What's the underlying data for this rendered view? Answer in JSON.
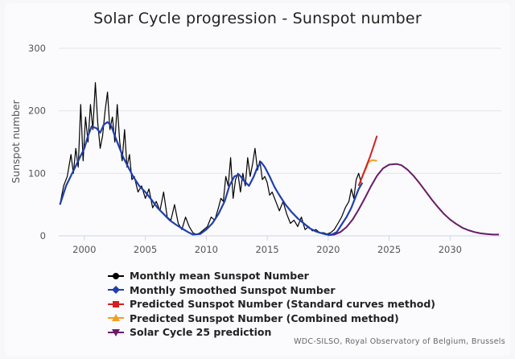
{
  "chart_data": {
    "type": "line",
    "title": "Solar Cycle progression - Sunspot number",
    "xlabel": "",
    "ylabel": "Sunspot number",
    "xlim": [
      1997.9,
      2034.2
    ],
    "ylim": [
      0,
      300
    ],
    "x_ticks": [
      2000,
      2005,
      2010,
      2015,
      2020,
      2025,
      2030
    ],
    "y_ticks": [
      0,
      100,
      200,
      300
    ],
    "grid": true,
    "legend_position": "bottom-left",
    "credits": "WDC-SILSO, Royal Observatory of Belgium, Brussels",
    "series": [
      {
        "name": "Monthly mean Sunspot Number",
        "color": "#000000",
        "marker": "circle",
        "x": [
          1998.0,
          1998.3,
          1998.6,
          1998.9,
          1999.1,
          1999.3,
          1999.5,
          1999.7,
          1999.9,
          2000.1,
          2000.3,
          2000.5,
          2000.7,
          2000.9,
          2001.1,
          2001.3,
          2001.5,
          2001.7,
          2001.9,
          2002.1,
          2002.3,
          2002.5,
          2002.7,
          2002.9,
          2003.1,
          2003.3,
          2003.5,
          2003.7,
          2003.9,
          2004.1,
          2004.4,
          2004.7,
          2005.0,
          2005.3,
          2005.6,
          2005.9,
          2006.2,
          2006.5,
          2006.8,
          2007.1,
          2007.4,
          2007.7,
          2008.0,
          2008.3,
          2008.6,
          2008.9,
          2009.2,
          2009.5,
          2009.8,
          2010.1,
          2010.4,
          2010.7,
          2011.0,
          2011.2,
          2011.4,
          2011.6,
          2011.8,
          2012.0,
          2012.2,
          2012.4,
          2012.6,
          2012.8,
          2013.0,
          2013.2,
          2013.4,
          2013.6,
          2013.8,
          2014.0,
          2014.2,
          2014.4,
          2014.6,
          2014.8,
          2015.0,
          2015.2,
          2015.4,
          2015.6,
          2015.8,
          2016.0,
          2016.3,
          2016.6,
          2016.9,
          2017.2,
          2017.5,
          2017.8,
          2018.1,
          2018.4,
          2018.7,
          2019.0,
          2019.3,
          2019.6,
          2019.9,
          2020.2,
          2020.5,
          2020.8,
          2021.1,
          2021.4,
          2021.7,
          2021.9,
          2022.1,
          2022.3,
          2022.5,
          2022.7
        ],
        "y": [
          50,
          80,
          95,
          130,
          100,
          140,
          110,
          210,
          120,
          190,
          150,
          210,
          170,
          245,
          180,
          140,
          160,
          200,
          230,
          170,
          190,
          150,
          210,
          150,
          120,
          170,
          110,
          130,
          90,
          95,
          70,
          80,
          60,
          75,
          45,
          55,
          40,
          70,
          30,
          25,
          50,
          20,
          10,
          30,
          15,
          5,
          2,
          5,
          10,
          15,
          30,
          25,
          45,
          60,
          55,
          95,
          80,
          125,
          60,
          90,
          100,
          70,
          100,
          80,
          125,
          95,
          115,
          140,
          105,
          120,
          90,
          95,
          85,
          65,
          70,
          60,
          50,
          40,
          55,
          35,
          20,
          25,
          15,
          30,
          10,
          15,
          8,
          10,
          5,
          5,
          3,
          5,
          10,
          20,
          30,
          45,
          55,
          75,
          60,
          90,
          100,
          85
        ]
      },
      {
        "name": "Monthly Smoothed Sunspot Number",
        "color": "#1f3fb0",
        "marker": "diamond",
        "x": [
          1998.0,
          1998.5,
          1999.0,
          1999.5,
          2000.0,
          2000.3,
          2000.6,
          2001.0,
          2001.3,
          2001.6,
          2001.9,
          2002.2,
          2002.5,
          2002.8,
          2003.2,
          2003.6,
          2004.0,
          2004.5,
          2005.0,
          2005.5,
          2006.0,
          2006.5,
          2007.0,
          2007.5,
          2008.0,
          2008.5,
          2008.9,
          2009.5,
          2010.0,
          2010.5,
          2011.0,
          2011.5,
          2011.9,
          2012.3,
          2012.7,
          2013.1,
          2013.5,
          2013.9,
          2014.2,
          2014.5,
          2014.8,
          2015.2,
          2015.6,
          2016.0,
          2016.5,
          2017.0,
          2017.5,
          2018.0,
          2018.5,
          2019.0,
          2019.5,
          2019.9,
          2020.3,
          2020.7,
          2021.1,
          2021.5,
          2021.9,
          2022.2,
          2022.5,
          2022.8
        ],
        "y": [
          50,
          80,
          100,
          120,
          140,
          160,
          175,
          172,
          165,
          178,
          182,
          176,
          160,
          145,
          125,
          110,
          95,
          80,
          70,
          58,
          45,
          35,
          25,
          18,
          12,
          6,
          2,
          3,
          10,
          20,
          35,
          55,
          80,
          95,
          98,
          88,
          80,
          95,
          110,
          118,
          110,
          95,
          78,
          65,
          50,
          38,
          28,
          20,
          12,
          7,
          4,
          2,
          2,
          6,
          18,
          30,
          45,
          60,
          75,
          85
        ]
      },
      {
        "name": "Predicted Sunspot Number (Standard curves method)",
        "color": "#d42020",
        "marker": "square",
        "x": [
          2022.5,
          2022.8,
          2023.1,
          2023.4,
          2023.7,
          2024.0
        ],
        "y": [
          80,
          95,
          110,
          125,
          142,
          160
        ]
      },
      {
        "name": "Predicted Sunspot Number (Combined method)",
        "color": "#f0a020",
        "marker": "triangle-up",
        "x": [
          2022.5,
          2022.8,
          2023.1,
          2023.3,
          2023.6,
          2024.0
        ],
        "y": [
          80,
          95,
          108,
          118,
          121,
          120
        ]
      },
      {
        "name": "Solar Cycle 25 prediction",
        "color": "#6a1a6a",
        "marker": "triangle-down",
        "x": [
          2020.0,
          2020.5,
          2021.0,
          2021.5,
          2022.0,
          2022.5,
          2023.0,
          2023.5,
          2024.0,
          2024.5,
          2025.0,
          2025.6,
          2026.0,
          2026.5,
          2027.0,
          2027.5,
          2028.0,
          2028.5,
          2029.0,
          2029.5,
          2030.0,
          2030.5,
          2031.0,
          2031.5,
          2032.0,
          2032.5,
          2033.0,
          2033.5,
          2034.0
        ],
        "y": [
          1,
          2,
          6,
          14,
          26,
          42,
          60,
          79,
          96,
          108,
          114,
          115,
          113,
          106,
          96,
          84,
          71,
          58,
          46,
          35,
          26,
          19,
          13,
          9,
          6,
          4,
          3,
          2,
          2
        ]
      }
    ]
  },
  "legend": [
    {
      "label": "Monthly mean Sunspot Number",
      "color": "#000000",
      "marker": "circle"
    },
    {
      "label": "Monthly Smoothed Sunspot Number",
      "color": "#1f3fb0",
      "marker": "diamond"
    },
    {
      "label": "Predicted Sunspot Number (Standard curves method)",
      "color": "#d42020",
      "marker": "square"
    },
    {
      "label": "Predicted Sunspot Number (Combined method)",
      "color": "#f0a020",
      "marker": "triangle-up"
    },
    {
      "label": "Solar Cycle 25 prediction",
      "color": "#6a1a6a",
      "marker": "triangle-down"
    }
  ]
}
